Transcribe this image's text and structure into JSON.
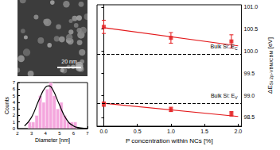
{
  "image": {
    "scale_bar": "20 nm"
  },
  "chart_data": [
    {
      "type": "histogram",
      "xlabel": "Diameter [nm]",
      "ylabel": "Counts",
      "bins": [
        2.75,
        3.0,
        3.25,
        3.5,
        3.75,
        4.0,
        4.25,
        4.5,
        4.75,
        5.0,
        5.25,
        5.5,
        5.75,
        6.0,
        6.25
      ],
      "counts": [
        1,
        1,
        2,
        5,
        4,
        6,
        7,
        5,
        3,
        4,
        2,
        1,
        1,
        1
      ],
      "color": "#f4a6dd",
      "fit": {
        "x": [
          2.5,
          3.0,
          3.5,
          4.0,
          4.25,
          4.5,
          5.0,
          5.5,
          6.0,
          6.5,
          7.0
        ],
        "values": [
          0.4,
          1.7,
          4.2,
          6.3,
          6.5,
          6.0,
          3.6,
          1.4,
          0.4,
          0.1,
          0.0
        ],
        "color": "#000000"
      },
      "xlim": [
        2,
        7
      ],
      "xticks": [
        2,
        3,
        4,
        5,
        6,
        7
      ],
      "ylim": [
        0,
        7
      ],
      "yticks": [
        0,
        1,
        2,
        3,
        4,
        5,
        6,
        7
      ]
    },
    {
      "type": "scatter",
      "xlabel": "P concentration within NCs [%]",
      "ylabel": {
        "text": "ΔE",
        "sub": "Si 2p-VBM/CBM",
        "unit": "[eV]"
      },
      "series": [
        {
          "color": "#e31a1c",
          "marker": "square",
          "x": [
            0,
            1,
            1.9
          ],
          "values": [
            100.55,
            100.3,
            100.22
          ],
          "errors": [
            0.15,
            0.12,
            0.15
          ]
        },
        {
          "color": "#e31a1c",
          "marker": "square",
          "x": [
            0,
            1,
            1.9
          ],
          "values": [
            98.8,
            98.68,
            98.58
          ],
          "errors": [
            0.05,
            0.05,
            0.05
          ]
        }
      ],
      "fits": [
        {
          "color": "#e31a1c",
          "x": [
            0,
            2.0
          ],
          "values": [
            100.53,
            100.12
          ]
        },
        {
          "color": "#e31a1c",
          "x": [
            0,
            2.0
          ],
          "values": [
            98.82,
            98.52
          ]
        }
      ],
      "reference_lines": [
        {
          "value": 99.93,
          "label": {
            "text": "Bulk Si: E",
            "sub": "C"
          },
          "line_style": "dashed",
          "color": "#000000"
        },
        {
          "value": 98.82,
          "label": {
            "text": "Bulk Si: E",
            "sub": "V"
          },
          "line_style": "dashed",
          "color": "#000000"
        }
      ],
      "xlim": [
        -0.1,
        2.05
      ],
      "xticks": [
        {
          "value": 0,
          "label": "0.0"
        },
        {
          "value": 0.5,
          "label": "0.5"
        },
        {
          "value": 1,
          "label": "1.0"
        },
        {
          "value": 1.5,
          "label": "1.5"
        },
        {
          "value": 2,
          "label": "2.0"
        }
      ],
      "ylim": [
        98.3,
        101.05
      ],
      "yticks": [
        {
          "value": 98.5,
          "label": "98.5"
        },
        {
          "value": 99,
          "label": "99.0"
        },
        {
          "value": 99.5,
          "label": "99.5"
        },
        {
          "value": 100,
          "label": "100.0"
        },
        {
          "value": 100.5,
          "label": "100.5"
        },
        {
          "value": 101,
          "label": "101.0"
        }
      ]
    }
  ]
}
